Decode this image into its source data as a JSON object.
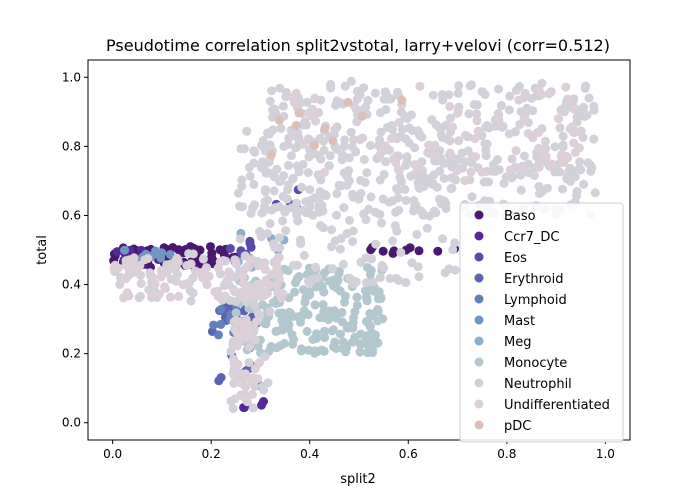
{
  "chart_data": {
    "type": "scatter",
    "title": "Pseudotime correlation split2vstotal, larry+velovi (corr=0.512)",
    "xlabel": "split2",
    "ylabel": "total",
    "xlim": [
      -0.05,
      1.05
    ],
    "ylim": [
      -0.05,
      1.05
    ],
    "xticks": [
      "0.0",
      "0.2",
      "0.4",
      "0.6",
      "0.8",
      "1.0"
    ],
    "yticks": [
      "0.0",
      "0.2",
      "0.4",
      "0.6",
      "0.8",
      "1.0"
    ],
    "xtick_values": [
      0,
      0.2,
      0.4,
      0.6,
      0.8,
      1.0
    ],
    "ytick_values": [
      0,
      0.2,
      0.4,
      0.6,
      0.8,
      1.0
    ],
    "grid": false,
    "legend_position": "lower-right",
    "series": [
      {
        "name": "Baso",
        "color": "#4a1870",
        "regions": [
          [
            0.0,
            0.25,
            0.45,
            0.51,
            70
          ],
          [
            0.5,
            0.7,
            0.49,
            0.51,
            10
          ]
        ]
      },
      {
        "name": "Ccr7_DC",
        "color": "#56279a",
        "regions": [
          [
            0.26,
            0.32,
            0.04,
            0.07,
            5
          ],
          [
            0.0,
            0.1,
            0.46,
            0.5,
            8
          ]
        ]
      },
      {
        "name": "Eos",
        "color": "#5b4aa8",
        "regions": [
          [
            0.23,
            0.3,
            0.45,
            0.56,
            10
          ],
          [
            0.33,
            0.38,
            0.6,
            0.68,
            4
          ]
        ]
      },
      {
        "name": "Erythroid",
        "color": "#5a64b2",
        "regions": [
          [
            0.2,
            0.3,
            0.1,
            0.35,
            25
          ]
        ]
      },
      {
        "name": "Lymphoid",
        "color": "#6280bd",
        "regions": [
          [
            0.2,
            0.28,
            0.25,
            0.35,
            10
          ]
        ]
      },
      {
        "name": "Mast",
        "color": "#7196c3",
        "regions": [
          [
            0.02,
            0.12,
            0.46,
            0.5,
            12
          ]
        ]
      },
      {
        "name": "Meg",
        "color": "#8baec9",
        "regions": [
          [
            0.25,
            0.35,
            0.45,
            0.55,
            8
          ]
        ]
      },
      {
        "name": "Monocyte",
        "color": "#b2c7ce",
        "regions": [
          [
            0.25,
            0.55,
            0.2,
            0.45,
            220
          ]
        ]
      },
      {
        "name": "Neutrophil",
        "color": "#d2d0d9",
        "regions": [
          [
            0.3,
            0.98,
            0.6,
            0.99,
            400
          ],
          [
            0.25,
            0.7,
            0.4,
            0.85,
            200
          ],
          [
            0.0,
            0.3,
            0.35,
            0.49,
            60
          ],
          [
            0.24,
            0.32,
            0.04,
            0.4,
            50
          ]
        ]
      },
      {
        "name": "Undifferentiated",
        "color": "#ddcfd7",
        "regions": [
          [
            0.0,
            0.35,
            0.36,
            0.48,
            80
          ],
          [
            0.24,
            0.3,
            0.04,
            0.3,
            40
          ],
          [
            0.35,
            0.95,
            0.7,
            0.98,
            80
          ]
        ]
      },
      {
        "name": "pDC",
        "color": "#dcbfb8",
        "regions": [
          [
            0.3,
            0.6,
            0.75,
            0.95,
            10
          ]
        ]
      }
    ]
  }
}
